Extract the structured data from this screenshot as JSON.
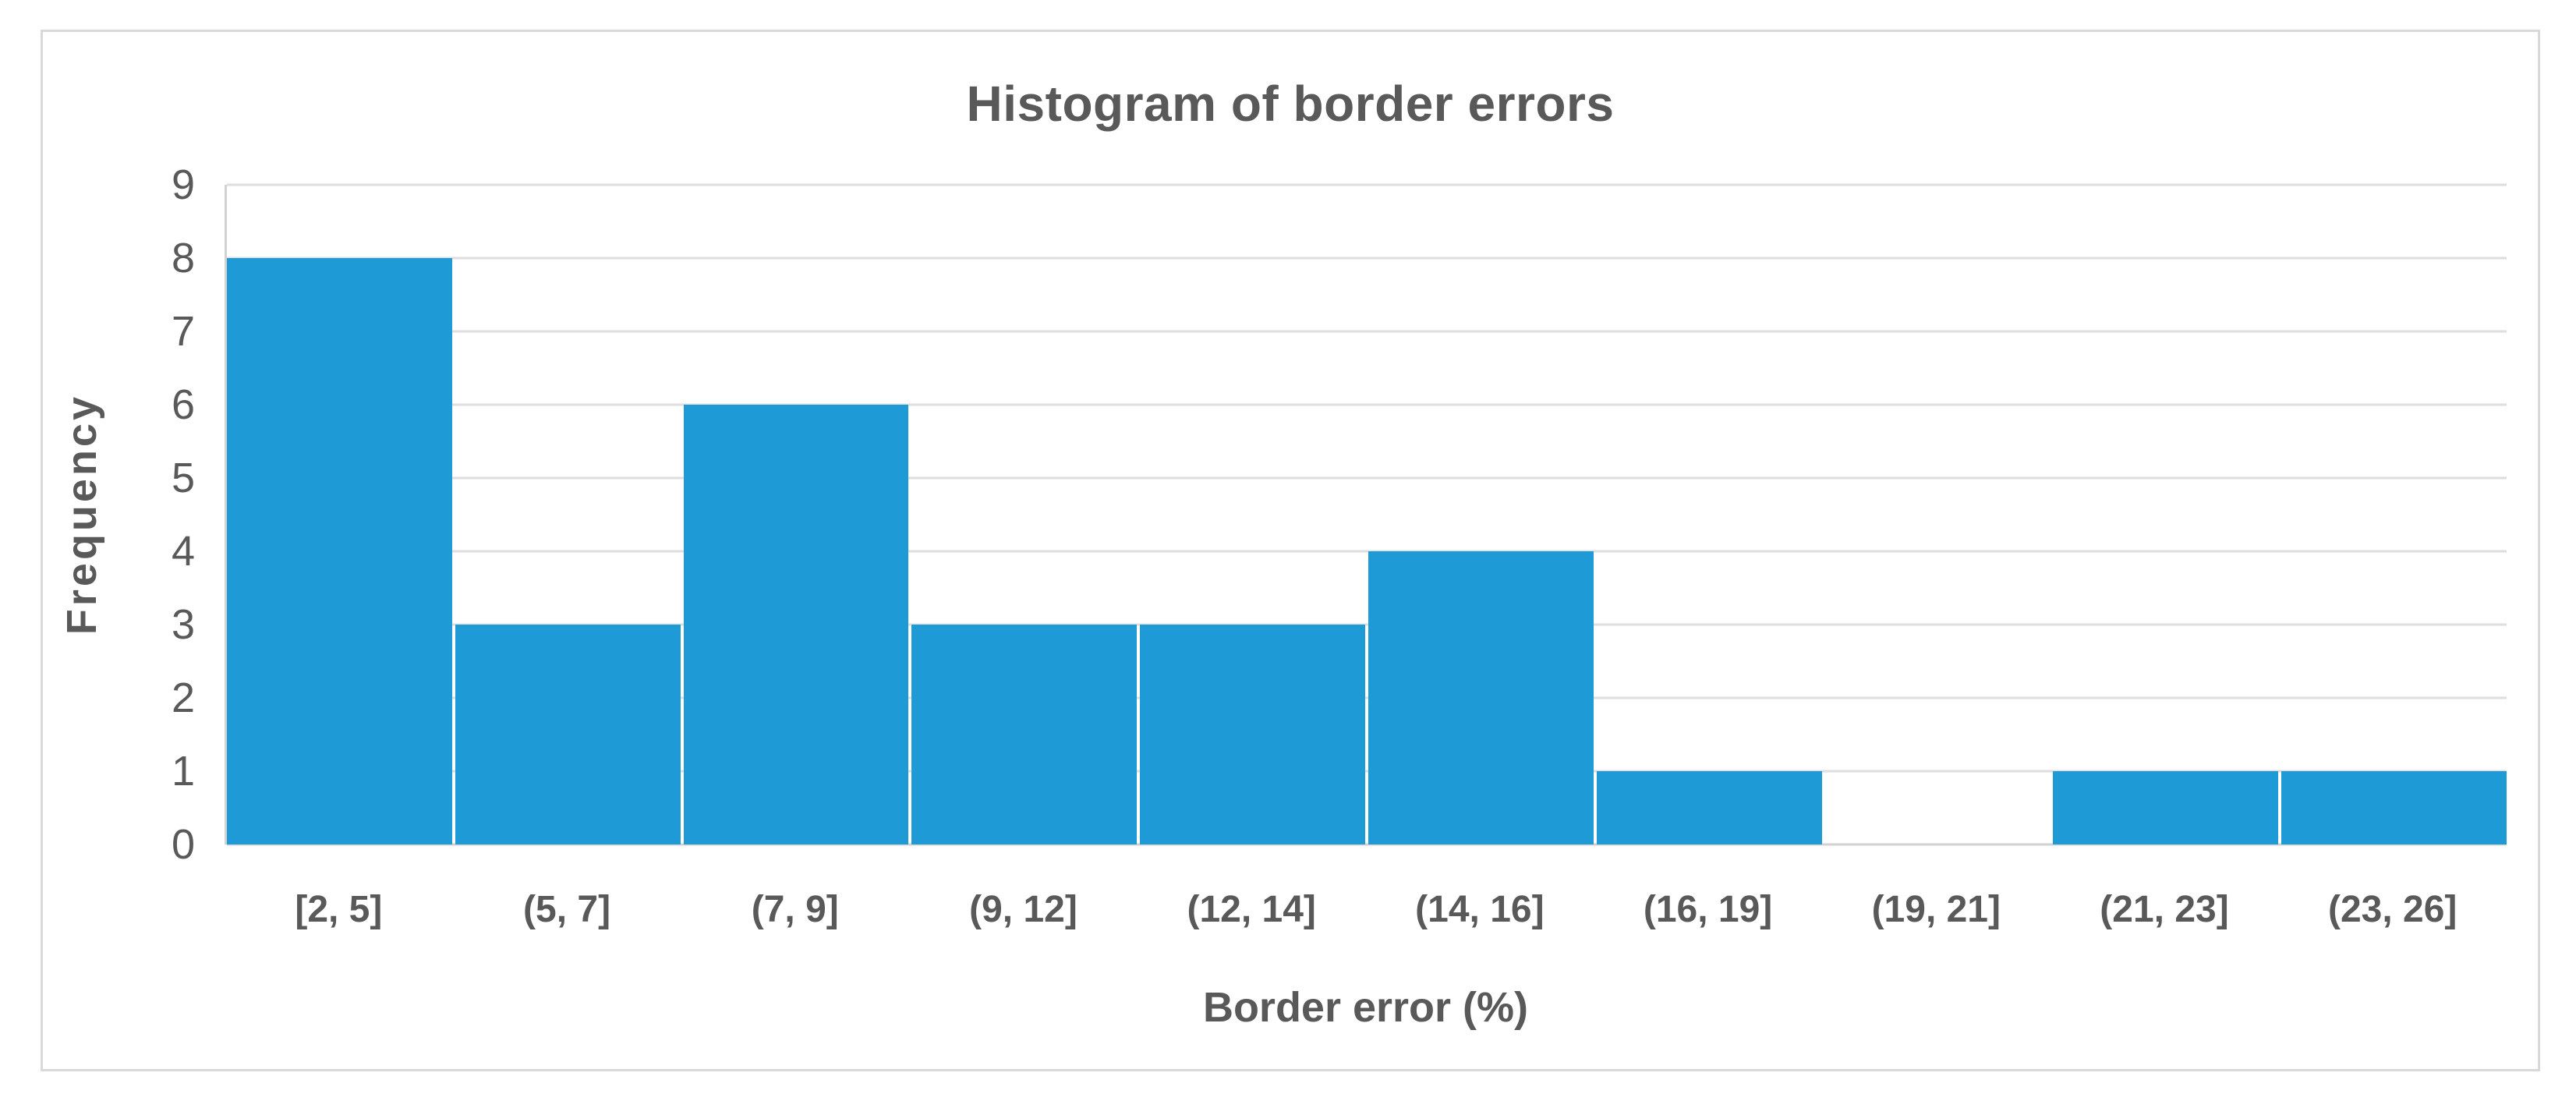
{
  "chart_data": {
    "type": "bar",
    "title": "Histogram of border errors",
    "xlabel": "Border error (%)",
    "ylabel": "Frequency",
    "categories": [
      "[2, 5]",
      "(5, 7]",
      "(7, 9]",
      "(9, 12]",
      "(12, 14]",
      "(14, 16]",
      "(16, 19]",
      "(19, 21]",
      "(21, 23]",
      "(23, 26]"
    ],
    "values": [
      8,
      3,
      6,
      3,
      3,
      4,
      1,
      0,
      1,
      1
    ],
    "ylim": [
      0,
      9
    ],
    "ytick_step": 1,
    "yticks": [
      0,
      1,
      2,
      3,
      4,
      5,
      6,
      7,
      8,
      9
    ],
    "grid": "horizontal",
    "legend": "none",
    "bar_gap": "none (adjacent bins, thin white separators)",
    "colors": {
      "bar": "#1E9AD6",
      "gridline": "#DEDEDE",
      "axis_line": "#D2D2D2",
      "text": "#595959",
      "frame_border": "#D9D9D9",
      "background": "#FFFFFF"
    }
  }
}
